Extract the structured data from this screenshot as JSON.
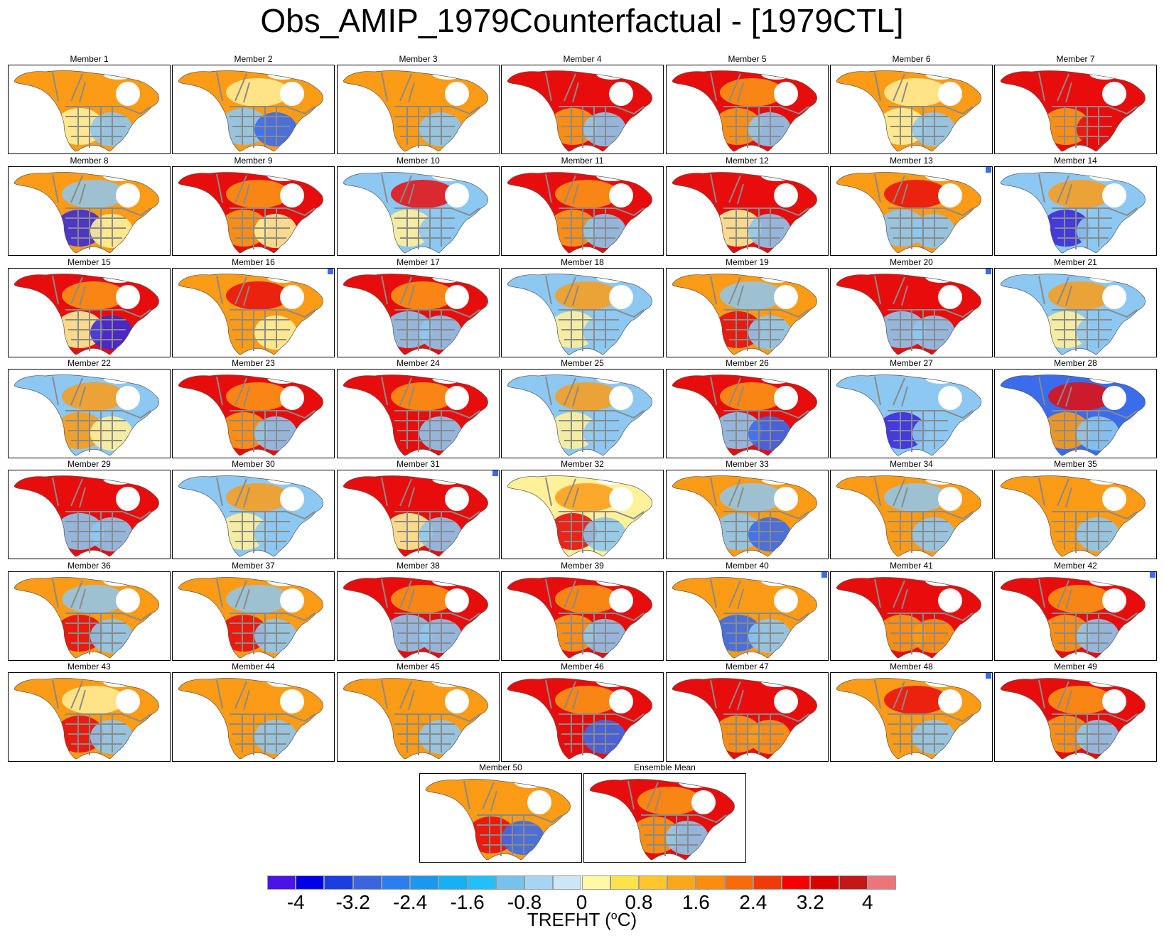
{
  "title": "Obs_AMIP_1979Counterfactual - [1979CTL]",
  "panels": [
    {
      "label": "Member 1",
      "canada": "warm",
      "north": "warm",
      "us_west": "mild",
      "us_east": "cool",
      "arctic": "normal"
    },
    {
      "label": "Member 2",
      "canada": "warm",
      "north": "mild",
      "us_west": "cool",
      "us_east": "cold",
      "arctic": "normal"
    },
    {
      "label": "Member 3",
      "canada": "warm",
      "north": "warm",
      "us_west": "warm",
      "us_east": "cool",
      "arctic": "normal"
    },
    {
      "label": "Member 4",
      "canada": "hot",
      "north": "hot",
      "us_west": "warm",
      "us_east": "cool",
      "arctic": "normal"
    },
    {
      "label": "Member 5",
      "canada": "hot",
      "north": "warm",
      "us_west": "warm",
      "us_east": "cool",
      "arctic": "normal"
    },
    {
      "label": "Member 6",
      "canada": "warm",
      "north": "mild",
      "us_west": "mild",
      "us_east": "cool",
      "arctic": "normal"
    },
    {
      "label": "Member 7",
      "canada": "hot",
      "north": "hot",
      "us_west": "warm",
      "us_east": "hot",
      "arctic": "normal"
    },
    {
      "label": "Member 8",
      "canada": "warm",
      "north": "cool",
      "us_west": "very_cold",
      "us_east": "mild",
      "arctic": "normal"
    },
    {
      "label": "Member 9",
      "canada": "hot",
      "north": "warm",
      "us_west": "warm",
      "us_east": "mild",
      "arctic": "normal"
    },
    {
      "label": "Member 10",
      "canada": "cool",
      "north": "hot",
      "us_west": "mild",
      "us_east": "cool",
      "arctic": "normal"
    },
    {
      "label": "Member 11",
      "canada": "hot",
      "north": "warm",
      "us_west": "warm",
      "us_east": "cool",
      "arctic": "normal"
    },
    {
      "label": "Member 12",
      "canada": "hot",
      "north": "hot",
      "us_west": "mild",
      "us_east": "cool",
      "arctic": "normal"
    },
    {
      "label": "Member 13",
      "canada": "warm",
      "north": "hot",
      "us_west": "cool",
      "us_east": "cool",
      "arctic": "cold"
    },
    {
      "label": "Member 14",
      "canada": "cool",
      "north": "warm",
      "us_west": "very_cold",
      "us_east": "cool",
      "arctic": "normal"
    },
    {
      "label": "Member 15",
      "canada": "hot",
      "north": "warm",
      "us_west": "mild",
      "us_east": "very_cold",
      "arctic": "normal"
    },
    {
      "label": "Member 16",
      "canada": "warm",
      "north": "hot",
      "us_west": "warm",
      "us_east": "mild",
      "arctic": "cold"
    },
    {
      "label": "Member 17",
      "canada": "hot",
      "north": "warm",
      "us_west": "cool",
      "us_east": "cool",
      "arctic": "normal"
    },
    {
      "label": "Member 18",
      "canada": "cool",
      "north": "warm",
      "us_west": "mild",
      "us_east": "cool",
      "arctic": "normal"
    },
    {
      "label": "Member 19",
      "canada": "warm",
      "north": "cool",
      "us_west": "hot",
      "us_east": "cool",
      "arctic": "normal"
    },
    {
      "label": "Member 20",
      "canada": "hot",
      "north": "hot",
      "us_west": "cool",
      "us_east": "cool",
      "arctic": "cold"
    },
    {
      "label": "Member 21",
      "canada": "cool",
      "north": "warm",
      "us_west": "mild",
      "us_east": "cool",
      "arctic": "normal"
    },
    {
      "label": "Member 22",
      "canada": "cool",
      "north": "warm",
      "us_west": "warm",
      "us_east": "mild",
      "arctic": "normal"
    },
    {
      "label": "Member 23",
      "canada": "hot",
      "north": "warm",
      "us_west": "warm",
      "us_east": "cool",
      "arctic": "normal"
    },
    {
      "label": "Member 24",
      "canada": "hot",
      "north": "warm",
      "us_west": "hot",
      "us_east": "cool",
      "arctic": "normal"
    },
    {
      "label": "Member 25",
      "canada": "cool",
      "north": "warm",
      "us_west": "mild",
      "us_east": "cool",
      "arctic": "normal"
    },
    {
      "label": "Member 26",
      "canada": "hot",
      "north": "warm",
      "us_west": "cool",
      "us_east": "cold",
      "arctic": "normal"
    },
    {
      "label": "Member 27",
      "canada": "cool",
      "north": "cool",
      "us_west": "very_cold",
      "us_east": "cool",
      "arctic": "normal"
    },
    {
      "label": "Member 28",
      "canada": "cold",
      "north": "hot",
      "us_west": "warm",
      "us_east": "cool",
      "arctic": "normal"
    },
    {
      "label": "Member 29",
      "canada": "hot",
      "north": "hot",
      "us_west": "cool",
      "us_east": "cool",
      "arctic": "normal"
    },
    {
      "label": "Member 30",
      "canada": "cool",
      "north": "warm",
      "us_west": "mild",
      "us_east": "cool",
      "arctic": "normal"
    },
    {
      "label": "Member 31",
      "canada": "hot",
      "north": "hot",
      "us_west": "mild",
      "us_east": "cool",
      "arctic": "cold"
    },
    {
      "label": "Member 32",
      "canada": "mild",
      "north": "warm",
      "us_west": "hot",
      "us_east": "cool",
      "arctic": "normal"
    },
    {
      "label": "Member 33",
      "canada": "warm",
      "north": "cool",
      "us_west": "cool",
      "us_east": "cold",
      "arctic": "normal"
    },
    {
      "label": "Member 34",
      "canada": "warm",
      "north": "cool",
      "us_west": "warm",
      "us_east": "cool",
      "arctic": "normal"
    },
    {
      "label": "Member 35",
      "canada": "warm",
      "north": "warm",
      "us_west": "warm",
      "us_east": "cool",
      "arctic": "normal"
    },
    {
      "label": "Member 36",
      "canada": "warm",
      "north": "cool",
      "us_west": "hot",
      "us_east": "cool",
      "arctic": "normal"
    },
    {
      "label": "Member 37",
      "canada": "warm",
      "north": "cool",
      "us_west": "hot",
      "us_east": "cool",
      "arctic": "normal"
    },
    {
      "label": "Member 38",
      "canada": "hot",
      "north": "warm",
      "us_west": "cool",
      "us_east": "cool",
      "arctic": "normal"
    },
    {
      "label": "Member 39",
      "canada": "hot",
      "north": "warm",
      "us_west": "warm",
      "us_east": "cool",
      "arctic": "normal"
    },
    {
      "label": "Member 40",
      "canada": "warm",
      "north": "warm",
      "us_west": "cold",
      "us_east": "cool",
      "arctic": "cold"
    },
    {
      "label": "Member 41",
      "canada": "hot",
      "north": "hot",
      "us_west": "warm",
      "us_east": "warm",
      "arctic": "normal"
    },
    {
      "label": "Member 42",
      "canada": "hot",
      "north": "warm",
      "us_west": "warm",
      "us_east": "cool",
      "arctic": "cold"
    },
    {
      "label": "Member 43",
      "canada": "warm",
      "north": "mild",
      "us_west": "hot",
      "us_east": "cool",
      "arctic": "normal"
    },
    {
      "label": "Member 44",
      "canada": "warm",
      "north": "warm",
      "us_west": "warm",
      "us_east": "cool",
      "arctic": "normal"
    },
    {
      "label": "Member 45",
      "canada": "warm",
      "north": "warm",
      "us_west": "warm",
      "us_east": "cool",
      "arctic": "normal"
    },
    {
      "label": "Member 46",
      "canada": "hot",
      "north": "warm",
      "us_west": "hot",
      "us_east": "cold",
      "arctic": "normal"
    },
    {
      "label": "Member 47",
      "canada": "hot",
      "north": "hot",
      "us_west": "warm",
      "us_east": "warm",
      "arctic": "normal"
    },
    {
      "label": "Member 48",
      "canada": "warm",
      "north": "hot",
      "us_west": "warm",
      "us_east": "cool",
      "arctic": "cold"
    },
    {
      "label": "Member 49",
      "canada": "hot",
      "north": "warm",
      "us_west": "warm",
      "us_east": "cool",
      "arctic": "normal"
    },
    {
      "label": "Member 50",
      "canada": "warm",
      "north": "warm",
      "us_west": "hot",
      "us_east": "cold",
      "arctic": "normal"
    },
    {
      "label": "Ensemble Mean",
      "canada": "hot",
      "north": "warm",
      "us_west": "warm",
      "us_east": "cool",
      "arctic": "normal"
    }
  ],
  "level_colors": {
    "very_cold": "#3b2bd9",
    "cold": "#3a6cec",
    "cool": "#8cc8f2",
    "mild": "#fff09a",
    "warm": "#fb9b16",
    "hot": "#e70d0d",
    "normal": "#ffffff"
  },
  "colorbar": {
    "colors": [
      "#4a14e8",
      "#0000e6",
      "#1a3ee0",
      "#3a64e0",
      "#2a7ff0",
      "#1a98f0",
      "#16b0f4",
      "#20c0f8",
      "#76c2ec",
      "#a4d6f4",
      "#cce6f8",
      "#fff9a6",
      "#ffe24a",
      "#ffc52a",
      "#fca71a",
      "#fb8c0c",
      "#f86b08",
      "#f13b06",
      "#f60000",
      "#da0000",
      "#c41818",
      "#ed747a"
    ],
    "labels": [
      "-4",
      "-3.2",
      "-2.4",
      "-1.6",
      "-0.8",
      "0",
      "0.8",
      "1.6",
      "2.4",
      "3.2",
      "4"
    ],
    "title": "TREFHT (",
    "unit_super": "o",
    "unit_suffix": "C)"
  }
}
